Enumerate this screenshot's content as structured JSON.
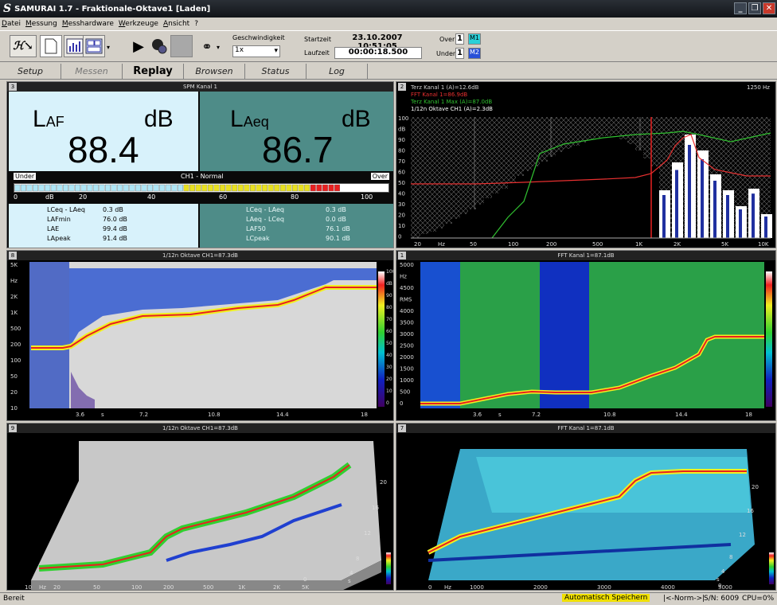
{
  "window": {
    "title": "SAMURAI 1.7 - Fraktionale-Oktave1 [Laden]",
    "logo": "S"
  },
  "menu": [
    "Datei",
    "Messung",
    "Messhardware",
    "Werkzeuge",
    "Ansicht",
    "?"
  ],
  "toolbar": {
    "speed_label": "Geschwindigkeit",
    "speed_value": "1x",
    "start_label": "Startzeit",
    "start_value": "23.10.2007  10:51:05",
    "run_label": "Laufzeit",
    "run_value": "00:00:18.500",
    "over_label": "Over",
    "over_value": "1",
    "under_label": "Under",
    "under_value": "1",
    "m1": "M1",
    "m2": "M2"
  },
  "tabs": [
    {
      "label": "Setup",
      "state": "normal"
    },
    {
      "label": "Messen",
      "state": "disabled"
    },
    {
      "label": "Replay",
      "state": "active"
    },
    {
      "label": "Browsen",
      "state": "normal"
    },
    {
      "label": "Status",
      "state": "normal"
    },
    {
      "label": "Log",
      "state": "normal"
    }
  ],
  "spm": {
    "number": "3",
    "header": "SPM Kanal 1",
    "laf_main": "L",
    "laf_sub": "AF",
    "laf_unit": "dB",
    "laf_value": "88.4",
    "laeq_main": "L",
    "laeq_sub": "Aeq",
    "laeq_unit": "dB",
    "laeq_value": "86.7",
    "under": "Under",
    "channel": "CH1 - Normal",
    "over": "Over",
    "scale": [
      "0",
      "dB",
      "20",
      "40",
      "60",
      "80",
      "100"
    ],
    "level_fraction": 0.86,
    "left_rows": [
      {
        "label": "LCeq - LAeq",
        "value": "0.3 dB"
      },
      {
        "label": "LAFmin",
        "value": "76.0 dB"
      },
      {
        "label": "LAE",
        "value": "99.4 dB"
      },
      {
        "label": "LApeak",
        "value": "91.4 dB"
      }
    ],
    "right_rows": [
      {
        "label": "LCeq - LAeq",
        "value": "0.3 dB"
      },
      {
        "label": "LAeq - LCeq",
        "value": "0.0 dB"
      },
      {
        "label": "LAF50",
        "value": "76.1 dB"
      },
      {
        "label": "LCpeak",
        "value": "90.1 dB"
      }
    ]
  },
  "spectrum": {
    "number": "2",
    "legend": [
      {
        "text": "Terz Kanal 1 (A)=12.6dB",
        "color": "#d0d0d0"
      },
      {
        "text": "FFT Kanal 1=86.9dB",
        "color": "#e83030"
      },
      {
        "text": "Terz Kanal 1 Max (A)=87.0dB",
        "color": "#30c030"
      },
      {
        "text": "1/12n Oktave CH1 (A)=2.3dB",
        "color": "#ffffff"
      }
    ],
    "freq_readout": "1250 Hz",
    "ylabels": [
      "100",
      "dB",
      "90",
      "80",
      "70",
      "60",
      "50",
      "40",
      "30",
      "20",
      "10",
      "0"
    ],
    "xlabels": [
      "20",
      "Hz",
      "50",
      "100",
      "200",
      "500",
      "1K",
      "2K",
      "5K",
      "10K"
    ]
  },
  "sono1": {
    "number": "8",
    "header": "1/12n Oktave CH1=87.3dB",
    "ylabels": [
      "5K",
      "Hz",
      "2K",
      "1K",
      "500",
      "200",
      "100",
      "50",
      "20",
      "10"
    ],
    "xlabels": [
      "3.6",
      "s",
      "7.2",
      "10.8",
      "14.4",
      "18"
    ],
    "scale": [
      "100",
      "dB",
      "90",
      "80",
      "70",
      "60",
      "50",
      "40",
      "30",
      "20",
      "10",
      "0"
    ]
  },
  "sono2": {
    "number": "1",
    "header": "FFT Kanal 1=87.1dB",
    "ylabels": [
      "5000",
      "Hz",
      "4500",
      "RMS",
      "4000",
      "3500",
      "3000",
      "2500",
      "2000",
      "1500",
      "1000",
      "500",
      "0"
    ],
    "xlabels": [
      "3.6",
      "s",
      "7.2",
      "10.8",
      "14.4",
      "18"
    ],
    "scale": [
      "100",
      "dB",
      "90",
      "80",
      "70",
      "60",
      "50",
      "40",
      "30",
      "20",
      "10",
      "0"
    ]
  },
  "wf1": {
    "number": "9",
    "header": "1/12n Oktave CH1=87.3dB",
    "xlabels": [
      "10",
      "Hz",
      "20",
      "50",
      "100",
      "200",
      "500",
      "1K",
      "2K",
      "5K"
    ],
    "depth": [
      "20",
      "16",
      "12",
      "8",
      "4",
      "s",
      "0"
    ]
  },
  "wf2": {
    "number": "7",
    "header": "FFT Kanal 1=87.1dB",
    "xlabels": [
      "0",
      "Hz",
      "1000",
      "2000",
      "3000",
      "4000",
      "5000"
    ],
    "depth": [
      "20",
      "16",
      "12",
      "8",
      "4",
      "s",
      "0"
    ]
  },
  "status": {
    "left": "Bereit",
    "auto": "Automatisch Speichern",
    "norm": "|<-Norm->|",
    "sn": "S/N: 6009",
    "cpu": "CPU=0%"
  }
}
